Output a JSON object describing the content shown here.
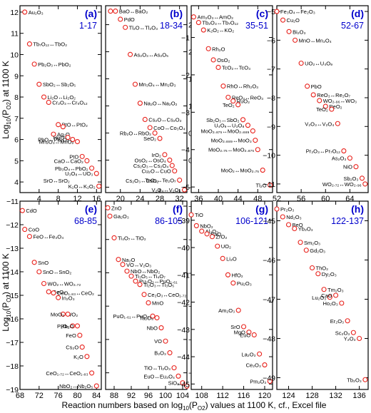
{
  "figure": {
    "xlabel": "Reaction numbers based on log",
    "xlabel_sub": "10",
    "xlabel_mid": "(P",
    "xlabel_sub2": "O2",
    "xlabel_tail": ") values at 1100 K, cf., Excel file",
    "ylabel_main": "Log",
    "ylabel_sub": "10",
    "ylabel_mid": "(P",
    "ylabel_sub2": "O2",
    "ylabel_tail": ") at 1100 K"
  },
  "colors": {
    "marker": "#e8201a",
    "panel_label": "#0000cc",
    "range_label": "#0000cc",
    "axis": "#000000"
  },
  "chart_data": [
    {
      "type": "scatter",
      "panel": "(a)",
      "range": "1-17",
      "xlim": [
        0,
        17
      ],
      "ylim": [
        3.5,
        12.3
      ],
      "xticks": [
        4,
        8,
        12,
        16
      ],
      "yticks": [
        4,
        5,
        6,
        7,
        8,
        9,
        10,
        11,
        12
      ],
      "points": [
        {
          "x": 1,
          "y": 12.0,
          "label": "Au₂O₃"
        },
        {
          "x": 2,
          "y": 10.5,
          "label": "Tb₇O₁₂↔TbO₂"
        },
        {
          "x": 3,
          "y": 9.55,
          "label": "Pb₂O₃↔PbO₂"
        },
        {
          "x": 4,
          "y": 8.6,
          "label": "SbO₂↔Sb₂O₅"
        },
        {
          "x": 5,
          "y": 8.0,
          "label": "Li₂O↔Li₂O₂"
        },
        {
          "x": 6,
          "y": 7.75,
          "label": "Cr₂O₃↔Cr₅O₁₂"
        },
        {
          "x": 7,
          "y": 6.25,
          "label": "Ag₂O"
        },
        {
          "x": 8,
          "y": 6.7,
          "label": "PtO↔PtO₂"
        },
        {
          "x": 9,
          "y": 6.6,
          "label": ""
        },
        {
          "x": 10,
          "y": 6.1,
          "label": "HgO"
        },
        {
          "x": 11,
          "y": 6.0,
          "label": "PbO↔Pb₃O₄"
        },
        {
          "x": 12,
          "y": 5.9,
          "label": "Mn₂O₃↔MnO₂"
        },
        {
          "x": 13,
          "y": 5.2,
          "label": "PtO"
        },
        {
          "x": 14,
          "y": 5.0,
          "label": "CaO↔CaO₂"
        },
        {
          "x": 15,
          "y": 4.65,
          "label": "Pb₃O₄↔PbO₂"
        },
        {
          "x": 16,
          "y": 4.4,
          "label": "U₃O₈↔UO₃"
        },
        {
          "x": 16.5,
          "y": 3.8,
          "label": "K₂O↔K₂O₂"
        }
      ],
      "extra_labels": [
        "SrO↔SrO₂"
      ]
    },
    {
      "type": "scatter",
      "panel": "(b)",
      "range": "18-34",
      "xlim": [
        17,
        33.5
      ],
      "ylim": [
        -0.6,
        2.85
      ],
      "xticks": [
        20,
        24,
        28,
        32
      ],
      "yticks": [
        -0.5,
        0.0,
        0.5,
        1.0,
        1.5,
        2.0,
        2.5
      ],
      "points": [
        {
          "x": 18,
          "y": 2.75,
          "label": ""
        },
        {
          "x": 19,
          "y": 2.75,
          "label": "BaO↔BaO₂"
        },
        {
          "x": 20,
          "y": 2.6,
          "label": "PdO"
        },
        {
          "x": 21,
          "y": 2.45,
          "label": "Tl₂O↔Tl₂O₃"
        },
        {
          "x": 22,
          "y": 1.95,
          "label": "As₂O₃↔As₂O₅"
        },
        {
          "x": 23,
          "y": 1.4,
          "label": "Mn₃O₄↔Mn₂O₃"
        },
        {
          "x": 24,
          "y": 1.05,
          "label": "Na₂O↔Na₂O₂"
        },
        {
          "x": 25,
          "y": 0.75,
          "label": "Cs₂O↔Cs₂O₂"
        },
        {
          "x": 26,
          "y": 0.6,
          "label": "CoO↔Co₃O₄"
        },
        {
          "x": 27,
          "y": 0.5,
          "label": "Rb₂O↔RbO₂"
        },
        {
          "x": 28,
          "y": 0.4,
          "label": "SeO₂"
        },
        {
          "x": 29,
          "y": 0.1,
          "label": "IrO₂"
        },
        {
          "x": 30,
          "y": 0.0,
          "label": "OsO₂↔OsO₄"
        },
        {
          "x": 30.5,
          "y": -0.1,
          "label": "Cs₂O₃↔Cs₂O₄"
        },
        {
          "x": 31,
          "y": -0.2,
          "label": "Cu₂O↔CuO"
        },
        {
          "x": 32,
          "y": -0.37,
          "label": "TeO₃↔Te₂O₇"
        },
        {
          "x": 33,
          "y": -0.55,
          "label": "V₂O₄↔V₂O₅"
        }
      ],
      "extra_labels": [
        "Cs₂O₃↔CsO₂"
      ]
    },
    {
      "type": "scatter",
      "panel": "(c)",
      "range": "35-51",
      "xlim": [
        34.5,
        51
      ],
      "ylim": [
        -5.15,
        -0.15
      ],
      "xticks": [
        36,
        40,
        44,
        48
      ],
      "yticks": [
        -5,
        -4,
        -3,
        -2,
        -1
      ],
      "points": [
        {
          "x": 35,
          "y": -0.45,
          "label": "Am₂O₃↔AmO₂"
        },
        {
          "x": 36,
          "y": -0.6,
          "label": "Tb₂O₃↔Tb₇O₁₂"
        },
        {
          "x": 37,
          "y": -0.8,
          "label": "K₂O₂↔KO₂"
        },
        {
          "x": 38,
          "y": -1.3,
          "label": "Rh₂O"
        },
        {
          "x": 39,
          "y": -1.6,
          "label": "OsO₂"
        },
        {
          "x": 40,
          "y": -1.8,
          "label": "TcO₂↔TcO₃"
        },
        {
          "x": 41,
          "y": -2.3,
          "label": "RhO↔Rh₂O₃"
        },
        {
          "x": 42,
          "y": -2.6,
          "label": "ReO₂↔ReO₃"
        },
        {
          "x": 43,
          "y": -2.7,
          "label": "RuO₂"
        },
        {
          "x": 44,
          "y": -2.8,
          "label": "TeO₂"
        },
        {
          "x": 45,
          "y": -3.2,
          "label": "Sb₂O₃↔SbO₂"
        },
        {
          "x": 46,
          "y": -3.35,
          "label": "U₄O₉↔U₃O₈"
        },
        {
          "x": 47,
          "y": -3.5,
          "label": "MoO₂.₈₇₅↔MoO₂.₈₈₉"
        },
        {
          "x": 47.5,
          "y": -3.75,
          "label": "MoO₂.₈₈₉↔MoO₃"
        },
        {
          "x": 48,
          "y": -4.0,
          "label": "MoO₂.₇₅↔MoO₂.₈₇₅"
        },
        {
          "x": 49,
          "y": -4.55,
          "label": "MoO₂↔MoO₂.₇₅"
        },
        {
          "x": 50.5,
          "y": -4.95,
          "label": "Tl₂O"
        }
      ]
    },
    {
      "type": "scatter",
      "panel": "(d)",
      "range": "52-67",
      "xlim": [
        52,
        67
      ],
      "ylim": [
        -11.3,
        -4.8
      ],
      "xticks": [
        52,
        56,
        60,
        64
      ],
      "yticks": [
        -11,
        -10,
        -9,
        -8,
        -7,
        -6,
        -5
      ],
      "points": [
        {
          "x": 52,
          "y": -5.0,
          "label": "Fe₃O₄↔Fe₂O₃"
        },
        {
          "x": 53,
          "y": -5.3,
          "label": "Cu₂O"
        },
        {
          "x": 54,
          "y": -5.7,
          "label": "Bi₂O₃"
        },
        {
          "x": 55,
          "y": -6.0,
          "label": "MnO↔Mn₃O₄"
        },
        {
          "x": 56,
          "y": -6.8,
          "label": "UO₂↔U₄O₉"
        },
        {
          "x": 57,
          "y": -7.6,
          "label": "PbO"
        },
        {
          "x": 58,
          "y": -7.9,
          "label": "ReO₃↔Re₂O₇"
        },
        {
          "x": 59,
          "y": -8.1,
          "label": "WO₂.₉₆↔WO₃"
        },
        {
          "x": 60,
          "y": -8.3,
          "label": "ReO₂"
        },
        {
          "x": 61,
          "y": -8.4,
          "label": "TeO₂"
        },
        {
          "x": 62,
          "y": -8.9,
          "label": "V₂O₃↔V₂O₄"
        },
        {
          "x": 63,
          "y": -9.85,
          "label": "Pr₂O₃↔Pr₇O₁₂"
        },
        {
          "x": 64,
          "y": -10.1,
          "label": "As₂O₃"
        },
        {
          "x": 65,
          "y": -10.4,
          "label": "NiO"
        },
        {
          "x": 66,
          "y": -10.8,
          "label": "Sb₂O₃"
        },
        {
          "x": 66.5,
          "y": -11.0,
          "label": "WO₂.₇₂↔WO₂.₉₆"
        }
      ]
    },
    {
      "type": "scatter",
      "panel": "(e)",
      "range": "68-85",
      "xlim": [
        68,
        85
      ],
      "ylim": [
        -19,
        -11
      ],
      "xticks": [
        68,
        72,
        76,
        80,
        84
      ],
      "yticks": [
        -19,
        -18,
        -17,
        -16,
        -15,
        -14,
        -13,
        -12,
        -11
      ],
      "points": [
        {
          "x": 68.5,
          "y": -11.4,
          "label": "CdO"
        },
        {
          "x": 69,
          "y": -12.2,
          "label": "CoO"
        },
        {
          "x": 70,
          "y": -12.5,
          "label": "FeO↔Fe₃O₄"
        },
        {
          "x": 71,
          "y": -13.6,
          "label": "SnO"
        },
        {
          "x": 72,
          "y": -14.0,
          "label": "SnO↔SnO₂"
        },
        {
          "x": 73,
          "y": -14.5,
          "label": "WO₂↔WO₂.₇₂"
        },
        {
          "x": 74,
          "y": -14.85,
          "label": "GeO₂"
        },
        {
          "x": 75,
          "y": -14.9,
          "label": "CeO₁.₈₃↔CeO₂"
        },
        {
          "x": 76,
          "y": -15.1,
          "label": "In₂O₃"
        },
        {
          "x": 77,
          "y": -15.8,
          "label": "WO₂"
        },
        {
          "x": 78,
          "y": -15.8,
          "label": "MoO₂"
        },
        {
          "x": 79,
          "y": -16.3,
          "label": "P₂O₅"
        },
        {
          "x": 80,
          "y": -16.3,
          "label": "Rb₂O"
        },
        {
          "x": 80.5,
          "y": -16.7,
          "label": "FeO"
        },
        {
          "x": 81,
          "y": -17.2,
          "label": "Cs₂O"
        },
        {
          "x": 82,
          "y": -17.6,
          "label": "K₂O"
        },
        {
          "x": 83,
          "y": -18.3,
          "label": "CeO₁.₇₂↔CeO₁.₈₃"
        },
        {
          "x": 84,
          "y": -18.85,
          "label": "NbO₂↔Nb₂O₅"
        }
      ]
    },
    {
      "type": "scatter",
      "panel": "(f)",
      "range": "86-105",
      "xlim": [
        86,
        105
      ],
      "ylim": [
        -31,
        -19.7
      ],
      "xticks": [
        88,
        92,
        96,
        100,
        104
      ],
      "yticks": [
        -30,
        -28,
        -26,
        -24,
        -22,
        -20
      ],
      "points": [
        {
          "x": 86.5,
          "y": -20.1,
          "label": "ZnO"
        },
        {
          "x": 87,
          "y": -20.6,
          "label": "Ga₂O₃"
        },
        {
          "x": 88,
          "y": -21.9,
          "label": "Ti₄O₇↔TiO₂"
        },
        {
          "x": 89,
          "y": -23.2,
          "label": "Na₂O"
        },
        {
          "x": 90,
          "y": -23.5,
          "label": "VO↔V₂O₃"
        },
        {
          "x": 91,
          "y": -23.9,
          "label": "NbO↔NbO₂"
        },
        {
          "x": 92,
          "y": -24.2,
          "label": "Ti₃O₅↔Ti₄O₇"
        },
        {
          "x": 93,
          "y": -24.5,
          "label": "Pu₂O₃↔PuO₁.₆₁"
        },
        {
          "x": 94,
          "y": -24.7,
          "label": "Ti₂O₃↔Ti₃O₅"
        },
        {
          "x": 95,
          "y": -25.3,
          "label": "Ce₂O₃↔CeO₁.₇₂"
        },
        {
          "x": 96,
          "y": -25.8,
          "label": "MnO"
        },
        {
          "x": 97,
          "y": -26.6,
          "label": "PuO₁.₆₁↔PuO₂"
        },
        {
          "x": 98,
          "y": -26.7,
          "label": "Ta₂O₅"
        },
        {
          "x": 99,
          "y": -27.3,
          "label": "NbO"
        },
        {
          "x": 100,
          "y": -28.1,
          "label": "VO"
        },
        {
          "x": 101,
          "y": -28.8,
          "label": "B₂O₃"
        },
        {
          "x": 102,
          "y": -29.7,
          "label": "TiO↔Ti₂O₃"
        },
        {
          "x": 103,
          "y": -30.2,
          "label": "EuO↔Eu₃O₄"
        },
        {
          "x": 104,
          "y": -30.6,
          "label": "SiO₂"
        },
        {
          "x": 105,
          "y": -30.8,
          "label": ""
        }
      ]
    },
    {
      "type": "scatter",
      "panel": "(g)",
      "range": "106-121",
      "xlim": [
        106,
        121.5
      ],
      "ylim": [
        -45.2,
        -38.3
      ],
      "xticks": [
        108,
        112,
        116,
        120
      ],
      "yticks": [
        -45,
        -44,
        -43,
        -42,
        -41,
        -40,
        -39
      ],
      "points": [
        {
          "x": 106,
          "y": -38.8,
          "label": "TiO"
        },
        {
          "x": 107,
          "y": -39.2,
          "label": "NbO₂"
        },
        {
          "x": 108,
          "y": -39.4,
          "label": "Al₂O₃"
        },
        {
          "x": 109,
          "y": -39.5,
          "label": "BaO"
        },
        {
          "x": 110,
          "y": -39.6,
          "label": "ZrO₂"
        },
        {
          "x": 111,
          "y": -39.95,
          "label": "UO₂"
        },
        {
          "x": 112,
          "y": -40.4,
          "label": "Li₂O"
        },
        {
          "x": 113,
          "y": -41.0,
          "label": "HfO₂"
        },
        {
          "x": 114,
          "y": -41.3,
          "label": "Pu₂O₃"
        },
        {
          "x": 115,
          "y": -42.3,
          "label": "Am₂O₃"
        },
        {
          "x": 116,
          "y": -42.9,
          "label": "SrO"
        },
        {
          "x": 117,
          "y": -43.1,
          "label": "MgO"
        },
        {
          "x": 118,
          "y": -43.2,
          "label": "EuO"
        },
        {
          "x": 119,
          "y": -43.9,
          "label": "La₂O₃"
        },
        {
          "x": 120,
          "y": -44.3,
          "label": "Ce₂O₃"
        },
        {
          "x": 121,
          "y": -44.9,
          "label": "Pm₂O₃"
        }
      ]
    },
    {
      "type": "scatter",
      "panel": "(h)",
      "range": "122-137",
      "xlim": [
        122,
        137.5
      ],
      "ylim": [
        -49.3,
        -44.5
      ],
      "xticks": [
        124,
        128,
        132,
        136
      ],
      "yticks": [
        -49,
        -48,
        -47,
        -46,
        -45
      ],
      "points": [
        {
          "x": 122,
          "y": -44.7,
          "label": "Pr₂O₃"
        },
        {
          "x": 123,
          "y": -44.9,
          "label": "Nd₂O₃"
        },
        {
          "x": 124,
          "y": -45.1,
          "label": "BeO"
        },
        {
          "x": 125,
          "y": -45.2,
          "label": "Yb₂O₃"
        },
        {
          "x": 126,
          "y": -45.55,
          "label": "Sm₂O₃"
        },
        {
          "x": 127,
          "y": -45.75,
          "label": "Gd₂O₃"
        },
        {
          "x": 128,
          "y": -46.2,
          "label": "ThO₂"
        },
        {
          "x": 129,
          "y": -46.35,
          "label": "Dy₂O₃"
        },
        {
          "x": 130,
          "y": -46.75,
          "label": "Tm₂O₃"
        },
        {
          "x": 131,
          "y": -46.95,
          "label": "Lu₂O₃"
        },
        {
          "x": 132,
          "y": -46.9,
          "label": "CaO"
        },
        {
          "x": 133,
          "y": -47.1,
          "label": "Ho₂O₃"
        },
        {
          "x": 134,
          "y": -47.55,
          "label": "Er₂O₃"
        },
        {
          "x": 135,
          "y": -47.85,
          "label": "Sc₂O₃"
        },
        {
          "x": 136,
          "y": -48.0,
          "label": "Y₂O₃"
        },
        {
          "x": 137,
          "y": -49.05,
          "label": "Tb₂O₃"
        }
      ]
    }
  ]
}
